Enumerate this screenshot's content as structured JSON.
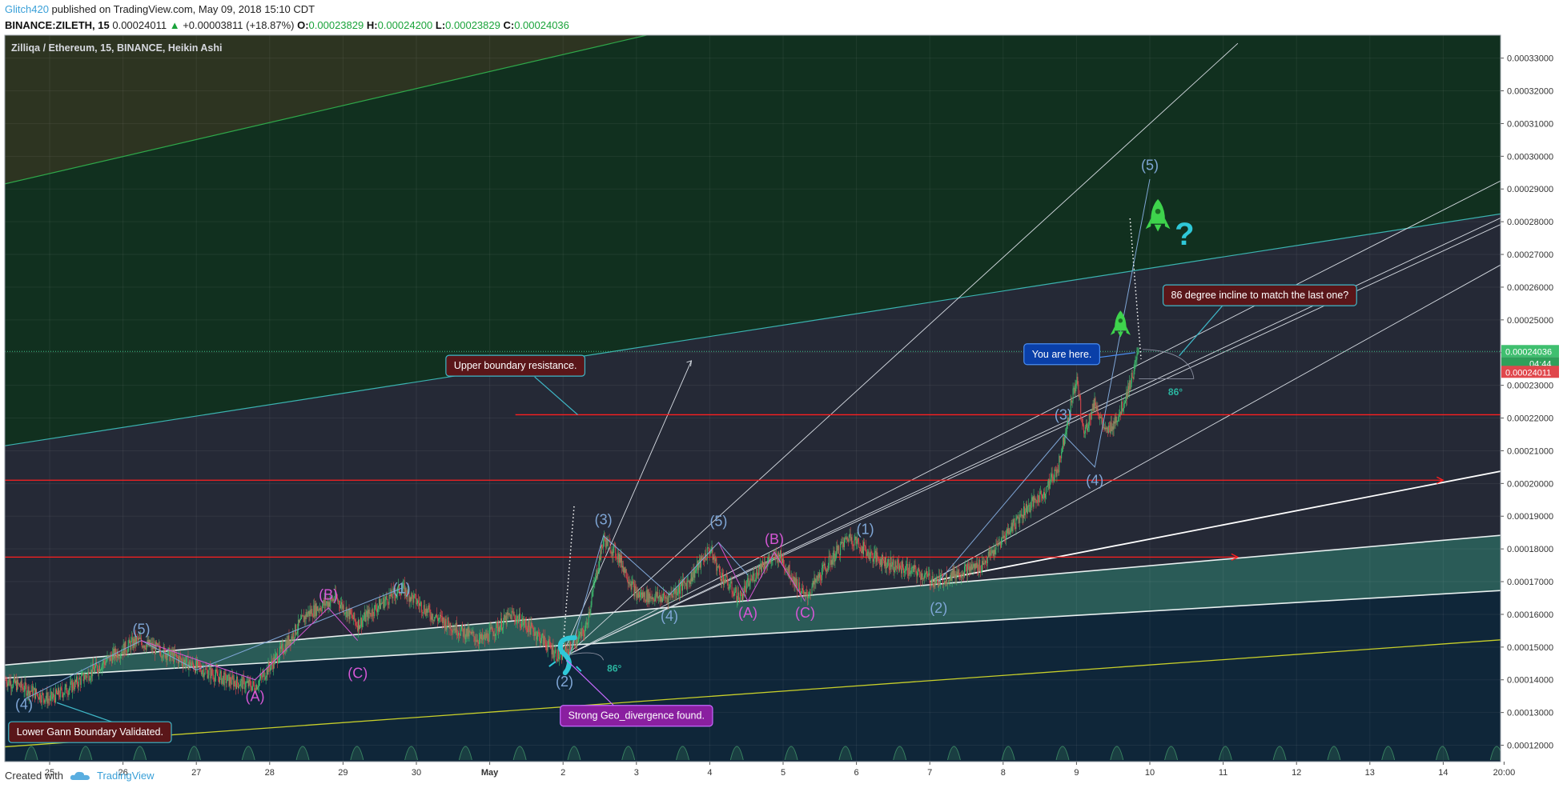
{
  "header": {
    "author": "Glitch420",
    "published": "published on TradingView.com, May 09, 2018 15:10 CDT",
    "symbol": "BINANCE:ZILETH, 15",
    "last": "0.00024011",
    "change": "+0.00003811 (+18.87%)",
    "o_label": "O:",
    "o": "0.00023829",
    "h_label": "H:",
    "h": "0.00024200",
    "l_label": "L:",
    "l": "0.00023829",
    "c_label": "C:",
    "c": "0.00024036"
  },
  "footer": {
    "created_with": "Created with",
    "brand": "TradingView"
  },
  "colors": {
    "background": "#252936",
    "upper_zone": "#11301f",
    "lower_zone": "#0f2639",
    "channel_fill": "#2a5b57",
    "resistance": "#ff1f1f",
    "up_candle": "#3fbf6f",
    "down_candle": "#e0474c",
    "wave_blue": "#7fa6d6",
    "wave_magenta": "#d657d6",
    "rocket": "#3ed34c",
    "cyan_mark": "#2fc8d8"
  },
  "chart_data": {
    "type": "candlestick",
    "title": "Zilliqa / Ethereum, 15, BINANCE, Heikin Ashi",
    "ylim": [
      0.000115,
      0.000337
    ],
    "y_ticks": [
      "0.00033000",
      "0.00032000",
      "0.00031000",
      "0.00030000",
      "0.00029000",
      "0.00028000",
      "0.00027000",
      "0.00026000",
      "0.00025000",
      "0.00024000",
      "0.00023000",
      "0.00022000",
      "0.00021000",
      "0.00020000",
      "0.00019000",
      "0.00018000",
      "0.00017000",
      "0.00016000",
      "0.00015000",
      "0.00014000",
      "0.00013000",
      "0.00012000"
    ],
    "y_tick_values": [
      0.00033,
      0.00032,
      0.00031,
      0.0003,
      0.00029,
      0.00028,
      0.00027,
      0.00026,
      0.00025,
      0.00024,
      0.00023,
      0.00022,
      0.00021,
      0.0002,
      0.00019,
      0.00018,
      0.00017,
      0.00016,
      0.00015,
      0.00014,
      0.00013,
      0.00012
    ],
    "x_ticks": [
      {
        "label": "25",
        "d": 0
      },
      {
        "label": "26",
        "d": 1
      },
      {
        "label": "27",
        "d": 2
      },
      {
        "label": "28",
        "d": 3
      },
      {
        "label": "29",
        "d": 4
      },
      {
        "label": "30",
        "d": 5
      },
      {
        "label": "May",
        "d": 6
      },
      {
        "label": "2",
        "d": 7
      },
      {
        "label": "3",
        "d": 8
      },
      {
        "label": "4",
        "d": 9
      },
      {
        "label": "5",
        "d": 10
      },
      {
        "label": "6",
        "d": 11
      },
      {
        "label": "7",
        "d": 12
      },
      {
        "label": "8",
        "d": 13
      },
      {
        "label": "9",
        "d": 14
      },
      {
        "label": "10",
        "d": 15
      },
      {
        "label": "11",
        "d": 16
      },
      {
        "label": "12",
        "d": 17
      },
      {
        "label": "13",
        "d": 18
      },
      {
        "label": "14",
        "d": 19
      },
      {
        "label": "20:00",
        "d": 19.83
      }
    ],
    "price_path": [
      [
        -0.6,
        0.00014
      ],
      [
        -0.3,
        0.000137
      ],
      [
        0,
        0.000134
      ],
      [
        0.3,
        0.000138
      ],
      [
        0.6,
        0.000143
      ],
      [
        0.9,
        0.000148
      ],
      [
        1.2,
        0.000152
      ],
      [
        1.6,
        0.000148
      ],
      [
        2.0,
        0.000144
      ],
      [
        2.4,
        0.00014
      ],
      [
        2.8,
        0.000138
      ],
      [
        3.2,
        0.00015
      ],
      [
        3.5,
        0.00016
      ],
      [
        3.9,
        0.000165
      ],
      [
        4.2,
        0.000157
      ],
      [
        4.5,
        0.000163
      ],
      [
        4.8,
        0.000168
      ],
      [
        5.2,
        0.00016
      ],
      [
        5.6,
        0.000155
      ],
      [
        5.9,
        0.000152
      ],
      [
        6.3,
        0.00016
      ],
      [
        6.6,
        0.000155
      ],
      [
        6.95,
        0.000147
      ],
      [
        7.1,
        0.00015
      ],
      [
        7.3,
        0.000155
      ],
      [
        7.55,
        0.000183
      ],
      [
        7.75,
        0.000178
      ],
      [
        8.0,
        0.000166
      ],
      [
        8.4,
        0.000165
      ],
      [
        8.7,
        0.00017
      ],
      [
        9.0,
        0.00018
      ],
      [
        9.15,
        0.000172
      ],
      [
        9.4,
        0.000165
      ],
      [
        9.7,
        0.000175
      ],
      [
        9.95,
        0.000178
      ],
      [
        10.3,
        0.000165
      ],
      [
        10.6,
        0.000175
      ],
      [
        10.9,
        0.000184
      ],
      [
        11.2,
        0.000178
      ],
      [
        11.5,
        0.000175
      ],
      [
        11.8,
        0.000173
      ],
      [
        12.1,
        0.00017
      ],
      [
        12.4,
        0.000173
      ],
      [
        12.7,
        0.000175
      ],
      [
        12.9,
        0.00018
      ],
      [
        13.05,
        0.000185
      ],
      [
        13.3,
        0.000192
      ],
      [
        13.55,
        0.000197
      ],
      [
        13.75,
        0.000205
      ],
      [
        13.9,
        0.000222
      ],
      [
        14.0,
        0.000232
      ],
      [
        14.1,
        0.000215
      ],
      [
        14.25,
        0.000225
      ],
      [
        14.4,
        0.000215
      ],
      [
        14.6,
        0.000222
      ],
      [
        14.75,
        0.000232
      ],
      [
        14.85,
        0.00024
      ]
    ],
    "resistance_levels": [
      0.000221,
      0.000201,
      0.0001775
    ],
    "last_price": "0.00024036",
    "last_price_value": 0.00024036,
    "countdown": "04:44",
    "bid_price": "0.00024011",
    "bid_price_value": 0.00024011,
    "wave_labels": [
      {
        "text": "(4)",
        "d": -0.35,
        "v": 0.000131,
        "c": "blue"
      },
      {
        "text": "(5)",
        "d": 1.25,
        "v": 0.000154,
        "c": "blue"
      },
      {
        "text": "(A)",
        "d": 2.8,
        "v": 0.0001335,
        "c": "magenta"
      },
      {
        "text": "(B)",
        "d": 3.8,
        "v": 0.0001645,
        "c": "magenta"
      },
      {
        "text": "(C)",
        "d": 4.2,
        "v": 0.0001405,
        "c": "magenta"
      },
      {
        "text": "(1)",
        "d": 4.8,
        "v": 0.0001665,
        "c": "blue"
      },
      {
        "text": "(2)",
        "d": 7.02,
        "v": 0.000138,
        "c": "blue"
      },
      {
        "text": "(3)",
        "d": 7.55,
        "v": 0.0001875,
        "c": "blue"
      },
      {
        "text": "(4)",
        "d": 8.45,
        "v": 0.000158,
        "c": "blue"
      },
      {
        "text": "(5)",
        "d": 9.12,
        "v": 0.000187,
        "c": "blue"
      },
      {
        "text": "(A)",
        "d": 9.52,
        "v": 0.000159,
        "c": "magenta"
      },
      {
        "text": "(B)",
        "d": 9.88,
        "v": 0.0001815,
        "c": "magenta"
      },
      {
        "text": "(C)",
        "d": 10.3,
        "v": 0.000159,
        "c": "magenta"
      },
      {
        "text": "(1)",
        "d": 11.12,
        "v": 0.0001845,
        "c": "blue"
      },
      {
        "text": "(2)",
        "d": 12.12,
        "v": 0.0001605,
        "c": "blue"
      },
      {
        "text": "(3)",
        "d": 13.82,
        "v": 0.0002195,
        "c": "blue"
      },
      {
        "text": "(4)",
        "d": 14.25,
        "v": 0.0001995,
        "c": "blue"
      },
      {
        "text": "(5)",
        "d": 15.0,
        "v": 0.0002958,
        "c": "blue"
      }
    ],
    "annotations": [
      {
        "text": "Upper boundary resistance.",
        "d": 6.35,
        "v": 0.000236,
        "style": "dark-red"
      },
      {
        "text": "Lower Gann Boundary Validated.",
        "d": 0.55,
        "v": 0.000124,
        "style": "dark-red"
      },
      {
        "text": "Strong Geo_divergence found.",
        "d": 8.0,
        "v": 0.000129,
        "style": "magenta"
      },
      {
        "text": "You are here.",
        "d": 13.8,
        "v": 0.0002395,
        "style": "blue"
      },
      {
        "text": "86 degree incline to match the last one?",
        "d": 16.5,
        "v": 0.0002575,
        "style": "dark-red"
      }
    ],
    "angle_labels": [
      {
        "text": "86°",
        "d": 7.6,
        "v": 0.0001425
      },
      {
        "text": "86°",
        "d": 15.25,
        "v": 0.000227
      }
    ],
    "question_mark": "?"
  }
}
